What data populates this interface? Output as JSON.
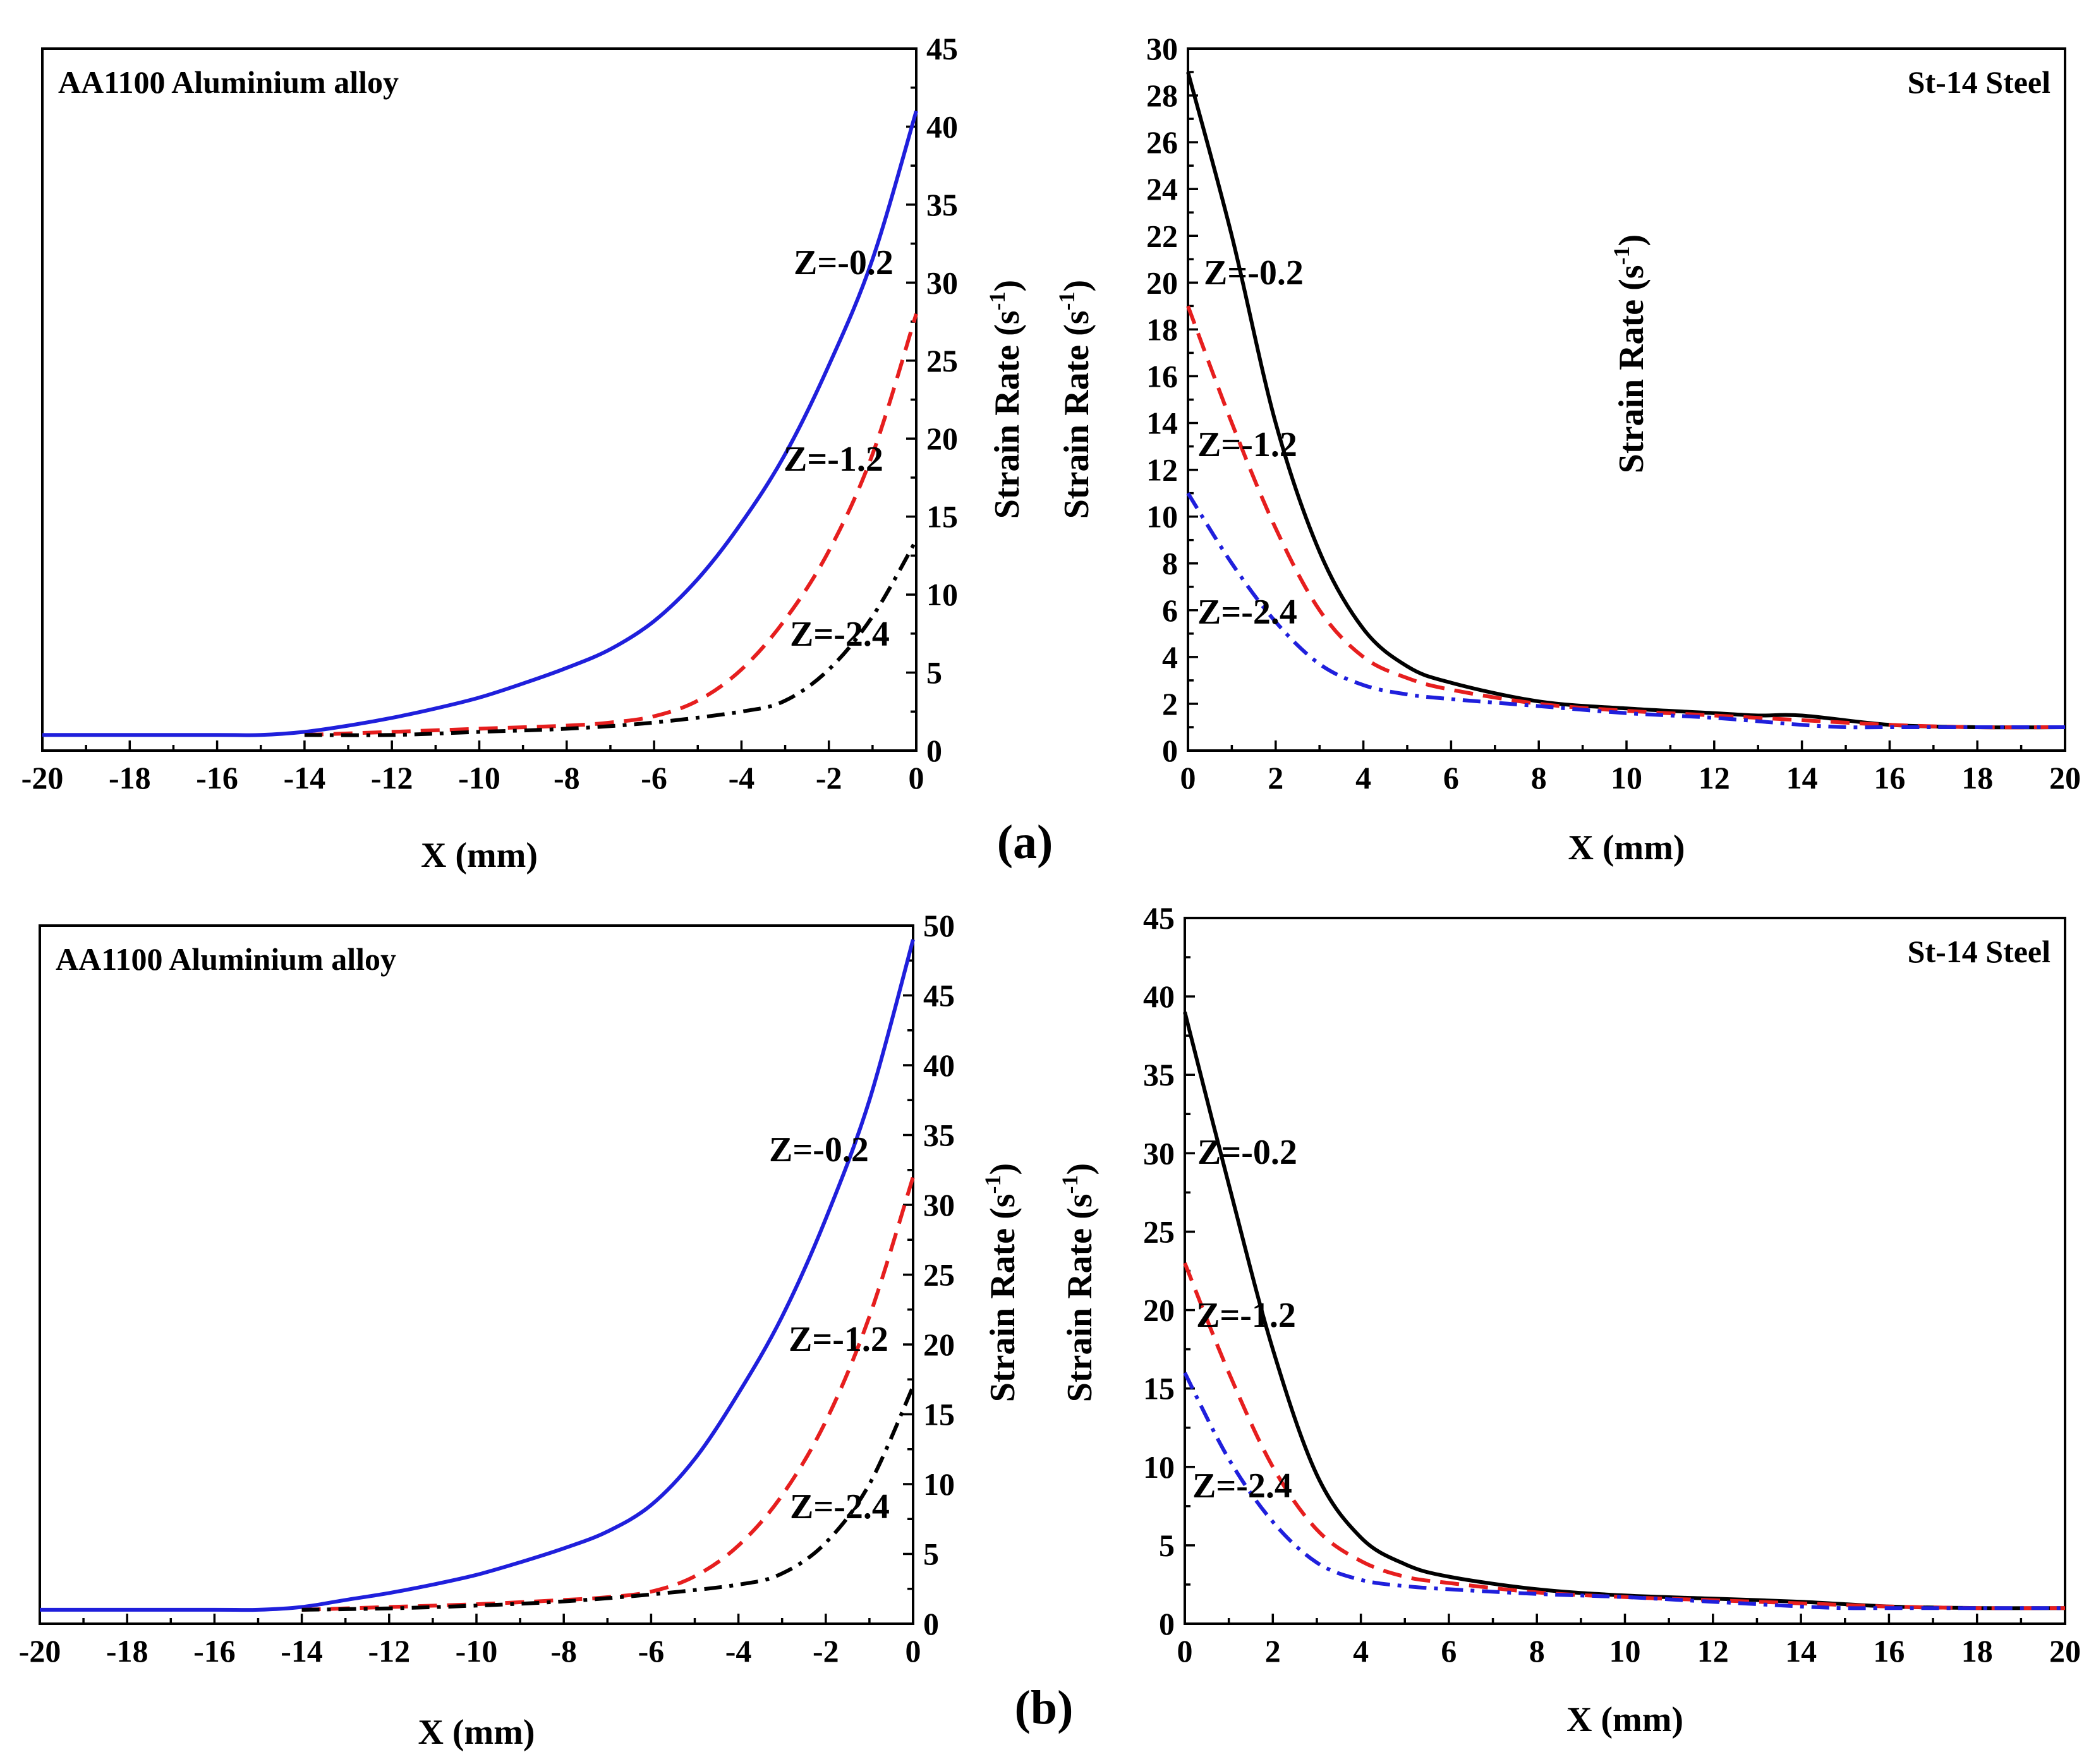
{
  "figure": {
    "panel_labels": [
      "(a)",
      "(b)"
    ]
  },
  "chart_data": [
    {
      "id": "a-left",
      "type": "line",
      "title": "AA1100 Aluminium alloy",
      "xlabel": "X (mm)",
      "ylabel": "Strain Rate (s-1)",
      "ylabel_main": "Strain Rate (s",
      "ylabel_sup": "-1",
      "ylabel_close": ")",
      "xlim": [
        -20,
        0
      ],
      "ylim": [
        0,
        45
      ],
      "xticks": [
        -20,
        -18,
        -16,
        -14,
        -12,
        -10,
        -8,
        -6,
        -4,
        -2,
        0
      ],
      "yticks": [
        0,
        5,
        10,
        15,
        20,
        25,
        30,
        35,
        40,
        45
      ],
      "yaxis_side": "right",
      "series": [
        {
          "name": "Z=-0.2",
          "color": "#1f1fdc",
          "dash": "solid",
          "x": [
            -20,
            -16,
            -15,
            -14,
            -13,
            -12,
            -11,
            -10,
            -9,
            -8,
            -7,
            -6,
            -5,
            -4,
            -3,
            -2,
            -1,
            0
          ],
          "y": [
            1.0,
            1.0,
            1.0,
            1.2,
            1.6,
            2.1,
            2.7,
            3.4,
            4.3,
            5.3,
            6.5,
            8.3,
            11.0,
            14.6,
            19.0,
            24.7,
            31.5,
            41.0
          ]
        },
        {
          "name": "Z=-1.2",
          "color": "#e61e1e",
          "dash": "dashed",
          "x": [
            -14,
            -12,
            -10,
            -8,
            -7,
            -6,
            -5,
            -4,
            -3,
            -2,
            -1,
            0
          ],
          "y": [
            1.0,
            1.2,
            1.4,
            1.6,
            1.8,
            2.2,
            3.2,
            5.2,
            8.4,
            12.8,
            19.0,
            28.0
          ]
        },
        {
          "name": "Z=-2.4",
          "color": "#000000",
          "dash": "dashdot",
          "x": [
            -14,
            -12,
            -10,
            -8,
            -6,
            -4,
            -3,
            -2,
            -1,
            0
          ],
          "y": [
            1.0,
            1.0,
            1.2,
            1.4,
            1.8,
            2.5,
            3.2,
            5.2,
            8.6,
            13.5
          ]
        }
      ],
      "annotations": [
        {
          "text": "Z=-0.2",
          "series": "Z=-0.2"
        },
        {
          "text": "Z=-1.2",
          "series": "Z=-1.2"
        },
        {
          "text": "Z=-2.4",
          "series": "Z=-2.4"
        }
      ]
    },
    {
      "id": "a-right",
      "type": "line",
      "title": "St-14 Steel",
      "xlabel": "X (mm)",
      "ylabel": "Strain Rate (s-1)",
      "ylabel_main": "Strain Rate (s",
      "ylabel_sup": "-1",
      "ylabel_close": ")",
      "xlim": [
        0,
        20
      ],
      "ylim": [
        0,
        30
      ],
      "xticks": [
        0,
        2,
        4,
        6,
        8,
        10,
        12,
        14,
        16,
        18,
        20
      ],
      "yticks": [
        0,
        2,
        4,
        6,
        8,
        10,
        12,
        14,
        16,
        18,
        20,
        22,
        24,
        26,
        28,
        30
      ],
      "yaxis_side": "left",
      "series": [
        {
          "name": "Z=-0.2",
          "color": "#000000",
          "dash": "solid",
          "x": [
            0,
            1,
            2,
            3,
            4,
            5,
            6,
            8,
            10,
            12,
            13,
            14,
            16,
            18,
            20
          ],
          "y": [
            29.0,
            22.0,
            14.0,
            8.5,
            5.2,
            3.6,
            2.9,
            2.1,
            1.8,
            1.6,
            1.5,
            1.5,
            1.1,
            1.0,
            1.0
          ]
        },
        {
          "name": "Z=-1.2",
          "color": "#e61e1e",
          "dash": "dashed",
          "x": [
            0,
            1,
            2,
            3,
            4,
            5,
            6,
            8,
            10,
            12,
            14,
            16,
            18,
            20
          ],
          "y": [
            19.0,
            14.0,
            9.5,
            6.0,
            4.0,
            3.1,
            2.6,
            2.0,
            1.7,
            1.5,
            1.3,
            1.1,
            1.0,
            1.0
          ]
        },
        {
          "name": "Z=-2.4",
          "color": "#1f1fdc",
          "dash": "dashdot",
          "x": [
            0,
            1,
            2,
            3,
            4,
            5,
            6,
            8,
            10,
            12,
            14,
            15,
            16,
            18,
            20
          ],
          "y": [
            11.0,
            8.0,
            5.5,
            3.7,
            2.8,
            2.4,
            2.2,
            1.9,
            1.6,
            1.4,
            1.1,
            1.0,
            1.0,
            1.0,
            1.0
          ]
        }
      ],
      "annotations": [
        {
          "text": "Z=-0.2",
          "series": "Z=-0.2"
        },
        {
          "text": "Z=-1.2",
          "series": "Z=-1.2"
        },
        {
          "text": "Z=-2.4",
          "series": "Z=-2.4"
        }
      ]
    },
    {
      "id": "b-left",
      "type": "line",
      "title": "AA1100 Aluminium alloy",
      "xlabel": "X (mm)",
      "ylabel": "Strain Rate (s-1)",
      "ylabel_main": "Strain Rate (s",
      "ylabel_sup": "-1",
      "ylabel_close": ")",
      "xlim": [
        -20,
        0
      ],
      "ylim": [
        0,
        50
      ],
      "xticks": [
        -20,
        -18,
        -16,
        -14,
        -12,
        -10,
        -8,
        -6,
        -4,
        -2,
        0
      ],
      "yticks": [
        0,
        5,
        10,
        15,
        20,
        25,
        30,
        35,
        40,
        45,
        50
      ],
      "yaxis_side": "right",
      "series": [
        {
          "name": "Z=-0.2",
          "color": "#1f1fdc",
          "dash": "solid",
          "x": [
            -20,
            -16,
            -15,
            -14,
            -13,
            -12,
            -11,
            -10,
            -9,
            -8,
            -7,
            -6,
            -5,
            -4,
            -3,
            -2,
            -1,
            0
          ],
          "y": [
            1.0,
            1.0,
            1.0,
            1.2,
            1.7,
            2.2,
            2.8,
            3.5,
            4.4,
            5.4,
            6.6,
            8.5,
            11.8,
            16.5,
            22.0,
            29.0,
            37.5,
            49.0
          ]
        },
        {
          "name": "Z=-1.2",
          "color": "#e61e1e",
          "dash": "dashed",
          "x": [
            -14,
            -12,
            -10,
            -8,
            -7,
            -6,
            -5,
            -4,
            -3,
            -2,
            -1,
            0
          ],
          "y": [
            1.0,
            1.2,
            1.4,
            1.7,
            1.9,
            2.3,
            3.4,
            5.6,
            9.2,
            14.5,
            22.0,
            32.0
          ]
        },
        {
          "name": "Z=-2.4",
          "color": "#000000",
          "dash": "dashdot",
          "x": [
            -14,
            -12,
            -10,
            -8,
            -6,
            -4,
            -3,
            -2,
            -1,
            0
          ],
          "y": [
            1.0,
            1.1,
            1.3,
            1.6,
            2.1,
            2.8,
            3.6,
            5.8,
            10.0,
            17.0
          ]
        }
      ],
      "annotations": [
        {
          "text": "Z=-0.2",
          "series": "Z=-0.2"
        },
        {
          "text": "Z=-1.2",
          "series": "Z=-1.2"
        },
        {
          "text": "Z=-2.4",
          "series": "Z=-2.4"
        }
      ]
    },
    {
      "id": "b-right",
      "type": "line",
      "title": "St-14 Steel",
      "xlabel": "X (mm)",
      "ylabel": "Strain Rate (s-1)",
      "ylabel_main": "Strain Rate (s",
      "ylabel_sup": "-1",
      "ylabel_close": ")",
      "xlim": [
        0,
        20
      ],
      "ylim": [
        0,
        45
      ],
      "xticks": [
        0,
        2,
        4,
        6,
        8,
        10,
        12,
        14,
        16,
        18,
        20
      ],
      "yticks": [
        0,
        5,
        10,
        15,
        20,
        25,
        30,
        35,
        40,
        45
      ],
      "yaxis_side": "left",
      "series": [
        {
          "name": "Z=-0.2",
          "color": "#000000",
          "dash": "solid",
          "x": [
            0,
            1,
            2,
            3,
            4,
            5,
            6,
            8,
            10,
            12,
            14,
            16,
            18,
            20
          ],
          "y": [
            39.0,
            28.0,
            17.5,
            9.5,
            5.5,
            3.8,
            3.0,
            2.2,
            1.8,
            1.6,
            1.4,
            1.1,
            1.0,
            1.0
          ]
        },
        {
          "name": "Z=-1.2",
          "color": "#e61e1e",
          "dash": "dashed",
          "x": [
            0,
            1,
            2,
            3,
            4,
            5,
            6,
            8,
            10,
            12,
            14,
            16,
            18,
            20
          ],
          "y": [
            23.0,
            16.0,
            10.0,
            6.0,
            4.0,
            3.0,
            2.6,
            2.0,
            1.7,
            1.5,
            1.3,
            1.1,
            1.0,
            1.0
          ]
        },
        {
          "name": "Z=-2.4",
          "color": "#1f1fdc",
          "dash": "dashdot",
          "x": [
            0,
            1,
            2,
            3,
            4,
            5,
            6,
            8,
            10,
            12,
            14,
            15,
            16,
            18,
            20
          ],
          "y": [
            16.0,
            10.5,
            6.5,
            3.9,
            2.8,
            2.4,
            2.2,
            1.9,
            1.7,
            1.4,
            1.1,
            1.0,
            1.0,
            1.0,
            1.0
          ]
        }
      ],
      "annotations": [
        {
          "text": "Z=-0.2",
          "series": "Z=-0.2"
        },
        {
          "text": "Z=-1.2",
          "series": "Z=-1.2"
        },
        {
          "text": "Z=-2.4",
          "series": "Z=-2.4"
        }
      ]
    }
  ]
}
